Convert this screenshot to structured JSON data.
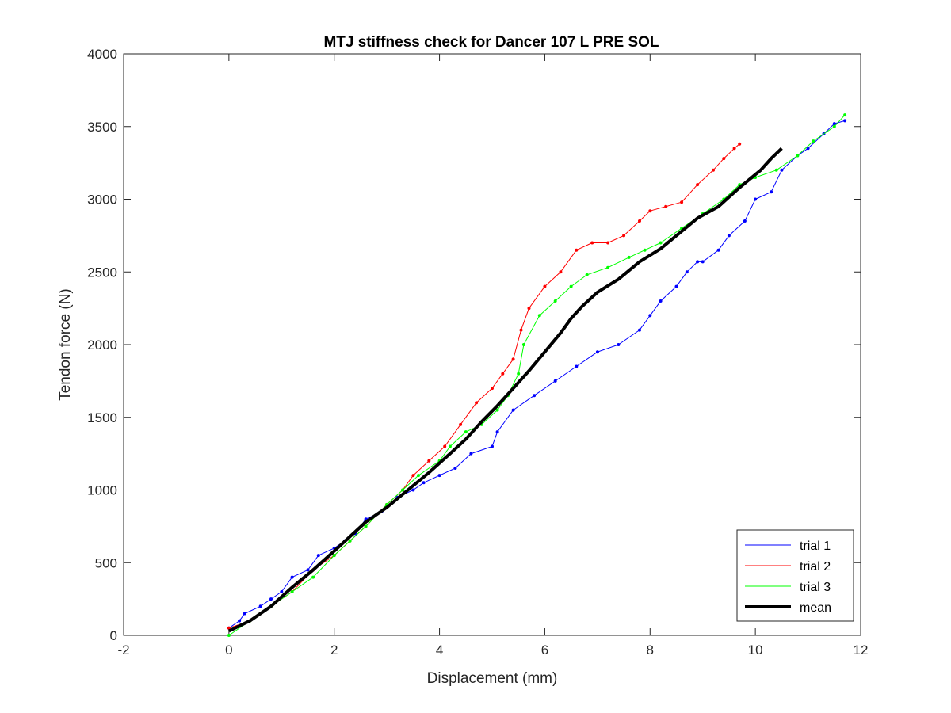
{
  "chart_data": {
    "type": "line",
    "title": "MTJ stiffness check for Dancer 107 L PRE SOL",
    "xlabel": "Displacement (mm)",
    "ylabel": "Tendon force (N)",
    "xlim": [
      -2,
      12
    ],
    "ylim": [
      0,
      4000
    ],
    "xticks": [
      -2,
      0,
      2,
      4,
      6,
      8,
      10,
      12
    ],
    "yticks": [
      0,
      500,
      1000,
      1500,
      2000,
      2500,
      3000,
      3500,
      4000
    ],
    "grid": false,
    "legend_position": "bottom-right",
    "series": [
      {
        "name": "trial 1",
        "color": "#0000ff",
        "points": [
          [
            0,
            50
          ],
          [
            0.2,
            100
          ],
          [
            0.3,
            150
          ],
          [
            0.6,
            200
          ],
          [
            0.8,
            250
          ],
          [
            1.0,
            300
          ],
          [
            1.2,
            400
          ],
          [
            1.5,
            450
          ],
          [
            1.7,
            550
          ],
          [
            2.0,
            600
          ],
          [
            2.2,
            650
          ],
          [
            2.4,
            700
          ],
          [
            2.6,
            800
          ],
          [
            2.9,
            850
          ],
          [
            3.2,
            950
          ],
          [
            3.5,
            1000
          ],
          [
            3.7,
            1050
          ],
          [
            4.0,
            1100
          ],
          [
            4.3,
            1150
          ],
          [
            4.6,
            1250
          ],
          [
            5.0,
            1300
          ],
          [
            5.1,
            1400
          ],
          [
            5.4,
            1550
          ],
          [
            5.8,
            1650
          ],
          [
            6.2,
            1750
          ],
          [
            6.6,
            1850
          ],
          [
            7.0,
            1950
          ],
          [
            7.4,
            2000
          ],
          [
            7.8,
            2100
          ],
          [
            8.0,
            2200
          ],
          [
            8.2,
            2300
          ],
          [
            8.5,
            2400
          ],
          [
            8.7,
            2500
          ],
          [
            8.9,
            2570
          ],
          [
            9.0,
            2570
          ],
          [
            9.3,
            2650
          ],
          [
            9.5,
            2750
          ],
          [
            9.8,
            2850
          ],
          [
            10.0,
            3000
          ],
          [
            10.3,
            3050
          ],
          [
            10.5,
            3200
          ],
          [
            10.8,
            3300
          ],
          [
            11.0,
            3350
          ],
          [
            11.3,
            3450
          ],
          [
            11.5,
            3520
          ],
          [
            11.7,
            3540
          ]
        ]
      },
      {
        "name": "trial 2",
        "color": "#ff0000",
        "points": [
          [
            0,
            50
          ],
          [
            0.4,
            100
          ],
          [
            0.8,
            200
          ],
          [
            1.2,
            300
          ],
          [
            1.6,
            450
          ],
          [
            2.0,
            550
          ],
          [
            2.3,
            650
          ],
          [
            2.6,
            750
          ],
          [
            3.0,
            900
          ],
          [
            3.3,
            1000
          ],
          [
            3.5,
            1100
          ],
          [
            3.8,
            1200
          ],
          [
            4.1,
            1300
          ],
          [
            4.4,
            1450
          ],
          [
            4.7,
            1600
          ],
          [
            5.0,
            1700
          ],
          [
            5.2,
            1800
          ],
          [
            5.4,
            1900
          ],
          [
            5.55,
            2100
          ],
          [
            5.7,
            2250
          ],
          [
            6.0,
            2400
          ],
          [
            6.3,
            2500
          ],
          [
            6.6,
            2650
          ],
          [
            6.9,
            2700
          ],
          [
            7.2,
            2700
          ],
          [
            7.5,
            2750
          ],
          [
            7.8,
            2850
          ],
          [
            8.0,
            2920
          ],
          [
            8.3,
            2950
          ],
          [
            8.6,
            2980
          ],
          [
            8.9,
            3100
          ],
          [
            9.2,
            3200
          ],
          [
            9.4,
            3280
          ],
          [
            9.6,
            3350
          ],
          [
            9.7,
            3380
          ]
        ]
      },
      {
        "name": "trial 3",
        "color": "#00ff00",
        "points": [
          [
            0,
            0
          ],
          [
            0.4,
            100
          ],
          [
            0.8,
            200
          ],
          [
            1.2,
            300
          ],
          [
            1.6,
            400
          ],
          [
            2.0,
            550
          ],
          [
            2.3,
            650
          ],
          [
            2.6,
            750
          ],
          [
            3.0,
            900
          ],
          [
            3.3,
            1000
          ],
          [
            3.6,
            1100
          ],
          [
            4.0,
            1200
          ],
          [
            4.2,
            1300
          ],
          [
            4.5,
            1400
          ],
          [
            4.8,
            1450
          ],
          [
            5.1,
            1550
          ],
          [
            5.3,
            1650
          ],
          [
            5.5,
            1800
          ],
          [
            5.6,
            2000
          ],
          [
            5.9,
            2200
          ],
          [
            6.2,
            2300
          ],
          [
            6.5,
            2400
          ],
          [
            6.8,
            2480
          ],
          [
            7.2,
            2530
          ],
          [
            7.6,
            2600
          ],
          [
            7.9,
            2650
          ],
          [
            8.2,
            2700
          ],
          [
            8.6,
            2800
          ],
          [
            9.0,
            2900
          ],
          [
            9.4,
            3000
          ],
          [
            9.7,
            3100
          ],
          [
            10.0,
            3150
          ],
          [
            10.4,
            3200
          ],
          [
            10.8,
            3300
          ],
          [
            11.1,
            3400
          ],
          [
            11.5,
            3500
          ],
          [
            11.7,
            3580
          ]
        ]
      },
      {
        "name": "mean",
        "color": "#000000",
        "points": [
          [
            0,
            30
          ],
          [
            0.4,
            100
          ],
          [
            0.8,
            200
          ],
          [
            1.2,
            330
          ],
          [
            1.6,
            450
          ],
          [
            2.0,
            580
          ],
          [
            2.6,
            780
          ],
          [
            3.0,
            880
          ],
          [
            3.4,
            1000
          ],
          [
            3.8,
            1120
          ],
          [
            4.2,
            1250
          ],
          [
            4.5,
            1350
          ],
          [
            4.8,
            1470
          ],
          [
            5.1,
            1580
          ],
          [
            5.4,
            1700
          ],
          [
            5.7,
            1820
          ],
          [
            6.0,
            1950
          ],
          [
            6.3,
            2080
          ],
          [
            6.5,
            2180
          ],
          [
            6.7,
            2260
          ],
          [
            7.0,
            2360
          ],
          [
            7.4,
            2450
          ],
          [
            7.8,
            2570
          ],
          [
            8.2,
            2660
          ],
          [
            8.5,
            2750
          ],
          [
            8.9,
            2870
          ],
          [
            9.3,
            2950
          ],
          [
            9.7,
            3080
          ],
          [
            10.1,
            3200
          ],
          [
            10.3,
            3280
          ],
          [
            10.5,
            3350
          ]
        ]
      }
    ]
  }
}
